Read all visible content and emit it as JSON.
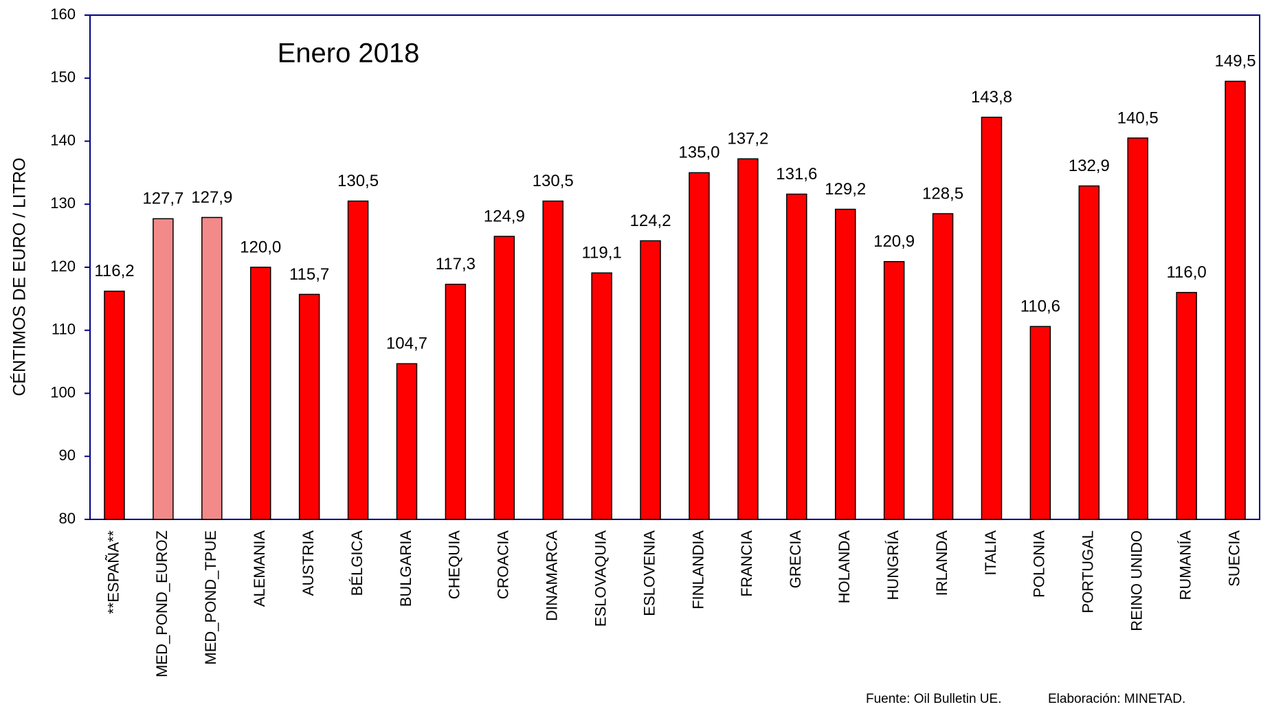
{
  "chart_data": {
    "type": "bar",
    "title": "Enero 2018",
    "y_label": "CÉNTIMOS DE EURO / LITRO",
    "categories": [
      "**ESPAÑA**",
      "MED_POND_EUROZ",
      "MED_POND_TPUE",
      "ALEMANIA",
      "AUSTRIA",
      "BÉLGICA",
      "BULGARIA",
      "CHEQUIA",
      "CROACIA",
      "DINAMARCA",
      "ESLOVAQUIA",
      "ESLOVENIA",
      "FINLANDIA",
      "FRANCIA",
      "GRECIA",
      "HOLANDA",
      "HUNGRÍA",
      "IRLANDA",
      "ITALIA",
      "POLONIA",
      "PORTUGAL",
      "REINO UNIDO",
      "RUMANÍA",
      "SUECIA"
    ],
    "values": [
      116.2,
      127.7,
      127.9,
      120.0,
      115.7,
      130.5,
      104.7,
      117.3,
      124.9,
      130.5,
      119.1,
      124.2,
      135.0,
      137.2,
      131.6,
      129.2,
      120.9,
      128.5,
      143.8,
      110.6,
      132.9,
      140.5,
      116.0,
      149.5
    ],
    "value_labels": [
      "116,2",
      "127,7",
      "127,9",
      "120,0",
      "115,7",
      "130,5",
      "104,7",
      "117,3",
      "124,9",
      "130,5",
      "119,1",
      "124,2",
      "135,0",
      "137,2",
      "131,6",
      "129,2",
      "120,9",
      "128,5",
      "143,8",
      "110,6",
      "132,9",
      "140,5",
      "116,0",
      "149,5"
    ],
    "colors": [
      "#ff0000",
      "#f28a8a",
      "#f28a8a",
      "#ff0000",
      "#ff0000",
      "#ff0000",
      "#ff0000",
      "#ff0000",
      "#ff0000",
      "#ff0000",
      "#ff0000",
      "#ff0000",
      "#ff0000",
      "#ff0000",
      "#ff0000",
      "#ff0000",
      "#ff0000",
      "#ff0000",
      "#ff0000",
      "#ff0000",
      "#ff0000",
      "#ff0000",
      "#ff0000",
      "#ff0000"
    ],
    "ylim": [
      80,
      160
    ],
    "yticks": [
      80,
      90,
      100,
      110,
      120,
      130,
      140,
      150,
      160
    ],
    "source": "Fuente: Oil Bulletin UE.",
    "credit": "Elaboración: MINETAD."
  }
}
